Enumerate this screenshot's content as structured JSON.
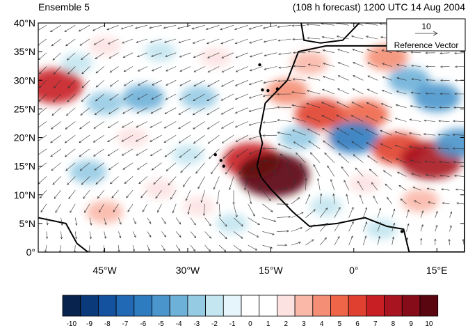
{
  "header": {
    "left_label": "Ensemble 5",
    "right_label": "(108 h forecast) 1200 UTC 14 Aug 2004"
  },
  "map": {
    "lon_range": [
      -57,
      20
    ],
    "lat_range": [
      0,
      40
    ],
    "lat_ticks": [
      {
        "value": 40,
        "label": "40°N"
      },
      {
        "value": 35,
        "label": "35°N"
      },
      {
        "value": 30,
        "label": "30°N"
      },
      {
        "value": 25,
        "label": "25°N"
      },
      {
        "value": 20,
        "label": "20°N"
      },
      {
        "value": 15,
        "label": "15°N"
      },
      {
        "value": 10,
        "label": "10°N"
      },
      {
        "value": 5,
        "label": "5°N"
      },
      {
        "value": 0,
        "label": "0°"
      }
    ],
    "lon_ticks": [
      {
        "value": -45,
        "label": "45°W"
      },
      {
        "value": -30,
        "label": "30°W"
      },
      {
        "value": -15,
        "label": "15°W"
      },
      {
        "value": 0,
        "label": "0°"
      },
      {
        "value": 15,
        "label": "15°E"
      }
    ],
    "colors": {
      "land_outside": "#c8c8c8",
      "coast": "#000000",
      "arrow": "#333333"
    },
    "anomalies": [
      {
        "lon": -54,
        "lat": 29,
        "value": 7
      },
      {
        "lon": -50,
        "lat": 33,
        "value": -2
      },
      {
        "lon": -45,
        "lat": 36,
        "value": 2
      },
      {
        "lon": -35,
        "lat": 35,
        "value": -2
      },
      {
        "lon": -25,
        "lat": 34,
        "value": 2
      },
      {
        "lon": -45,
        "lat": 26,
        "value": -3
      },
      {
        "lon": -38,
        "lat": 27,
        "value": -4
      },
      {
        "lon": -28,
        "lat": 27,
        "value": -3
      },
      {
        "lon": -40,
        "lat": 20,
        "value": 2
      },
      {
        "lon": -30,
        "lat": 17,
        "value": -2
      },
      {
        "lon": -48,
        "lat": 14,
        "value": -3
      },
      {
        "lon": -35,
        "lat": 11,
        "value": 2
      },
      {
        "lon": -45,
        "lat": 7,
        "value": 3
      },
      {
        "lon": -28,
        "lat": 8,
        "value": 2
      },
      {
        "lon": -22,
        "lat": 5,
        "value": -2
      },
      {
        "lon": -18.5,
        "lat": 16,
        "value": 7
      },
      {
        "lon": -14.5,
        "lat": 13.5,
        "value": 10
      },
      {
        "lon": -12,
        "lat": 28,
        "value": 4
      },
      {
        "lon": -6,
        "lat": 24,
        "value": 6
      },
      {
        "lon": 2,
        "lat": 24,
        "value": 5
      },
      {
        "lon": -10,
        "lat": 20,
        "value": -3
      },
      {
        "lon": -3,
        "lat": 20,
        "value": 2
      },
      {
        "lon": 0,
        "lat": 20,
        "value": -6
      },
      {
        "lon": 8,
        "lat": 18,
        "value": 6
      },
      {
        "lon": 14,
        "lat": 16,
        "value": 8
      },
      {
        "lon": 19,
        "lat": 19,
        "value": -5
      },
      {
        "lon": 10,
        "lat": 30,
        "value": -4
      },
      {
        "lon": 15,
        "lat": 27,
        "value": -5
      },
      {
        "lon": 6,
        "lat": 34,
        "value": 4
      },
      {
        "lon": -8,
        "lat": 33,
        "value": 3
      },
      {
        "lon": 2,
        "lat": 12,
        "value": 2
      },
      {
        "lon": 12,
        "lat": 9,
        "value": 3
      },
      {
        "lon": -5,
        "lat": 8,
        "value": -2
      },
      {
        "lon": 5,
        "lat": 4,
        "value": -2
      }
    ]
  },
  "reference_vector": {
    "magnitude_label": "10",
    "caption": "Reference Vector"
  },
  "colorbar": {
    "labels": [
      "-10",
      "-9",
      "-8",
      "-7",
      "-6",
      "-5",
      "-4",
      "-3",
      "-2",
      "-1",
      "0",
      "1",
      "2",
      "3",
      "4",
      "5",
      "6",
      "7",
      "8",
      "9",
      "10"
    ],
    "colors": [
      "#08234e",
      "#0a3a7a",
      "#1452a0",
      "#2168b5",
      "#2d7cc0",
      "#4a96cc",
      "#6db0d8",
      "#96cbe4",
      "#c3e6f0",
      "#e6f5fb",
      "#ffffff",
      "#ffffff",
      "#fde2e2",
      "#f9b8a8",
      "#f48e74",
      "#ee6548",
      "#e0402f",
      "#c81f24",
      "#a81520",
      "#850c18",
      "#5a0610"
    ]
  }
}
